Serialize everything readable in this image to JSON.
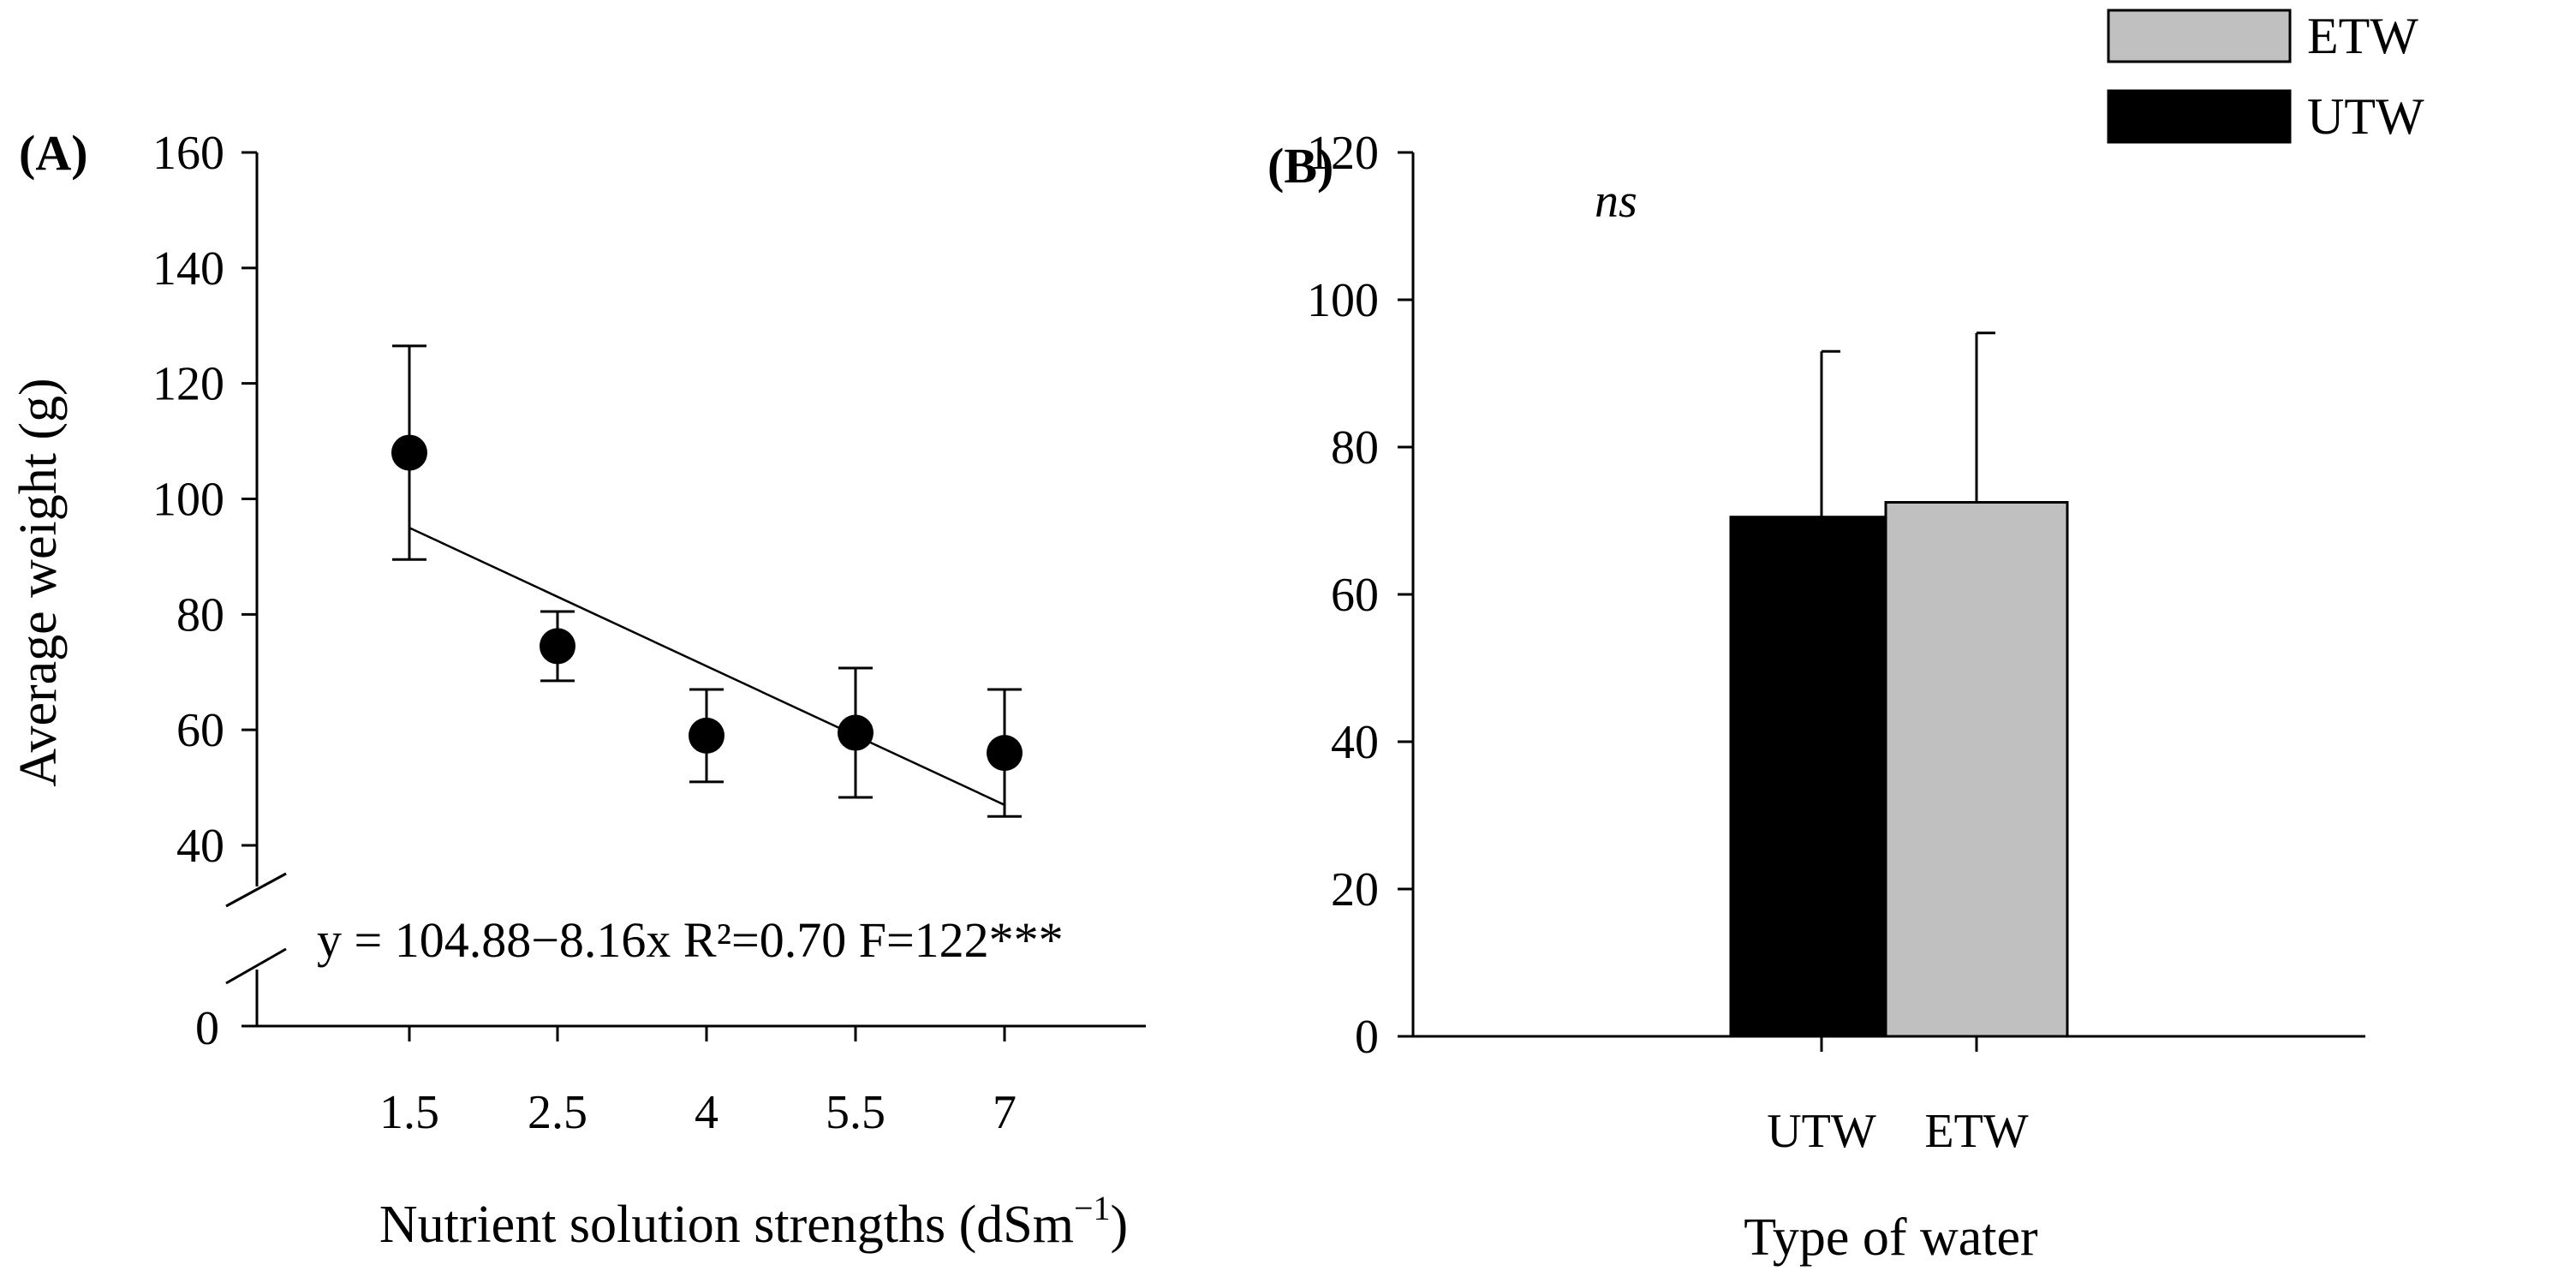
{
  "chart_data": [
    {
      "type": "scatter",
      "panel_label": "(A)",
      "ylabel": "Average weight  (g)",
      "xlabel": "Nutrient solution strengths  (dSm",
      "xlabel_unit_exponent": "−1",
      "xlabel_close": ")",
      "categories": [
        "1.5",
        "2.5",
        "4",
        "5.5",
        "7"
      ],
      "values": [
        108,
        74.5,
        59,
        59.5,
        56
      ],
      "errors": [
        18.5,
        6,
        8,
        11.2,
        11
      ],
      "y_ticks": [
        "40",
        "60",
        "80",
        "100",
        "120",
        "140",
        "160"
      ],
      "y_tick_values": [
        40,
        60,
        80,
        100,
        120,
        140,
        160
      ],
      "y_zero_label": "0",
      "ylim": [
        35,
        160
      ],
      "axis_break": true,
      "regression": {
        "start": [
          1.5,
          95
        ],
        "end": [
          7,
          47
        ],
        "equation": "y = 104.88−8.16x R²=0.70 F=122***"
      }
    },
    {
      "type": "bar",
      "panel_label": "(B)",
      "ylabel": "",
      "xlabel": "Type of water",
      "categories": [
        "UTW",
        "ETW"
      ],
      "values": [
        70.5,
        72.5
      ],
      "errors": [
        22.5,
        23
      ],
      "colors": [
        "#000000",
        "#c0c0c0"
      ],
      "y_ticks": [
        "0",
        "20",
        "40",
        "60",
        "80",
        "100",
        "120"
      ],
      "y_tick_values": [
        0,
        20,
        40,
        60,
        80,
        100,
        120
      ],
      "ylim": [
        0,
        120
      ],
      "annotation": "ns",
      "legend": [
        {
          "label": "ETW",
          "color": "#c0c0c0"
        },
        {
          "label": "UTW",
          "color": "#000000"
        }
      ]
    }
  ]
}
